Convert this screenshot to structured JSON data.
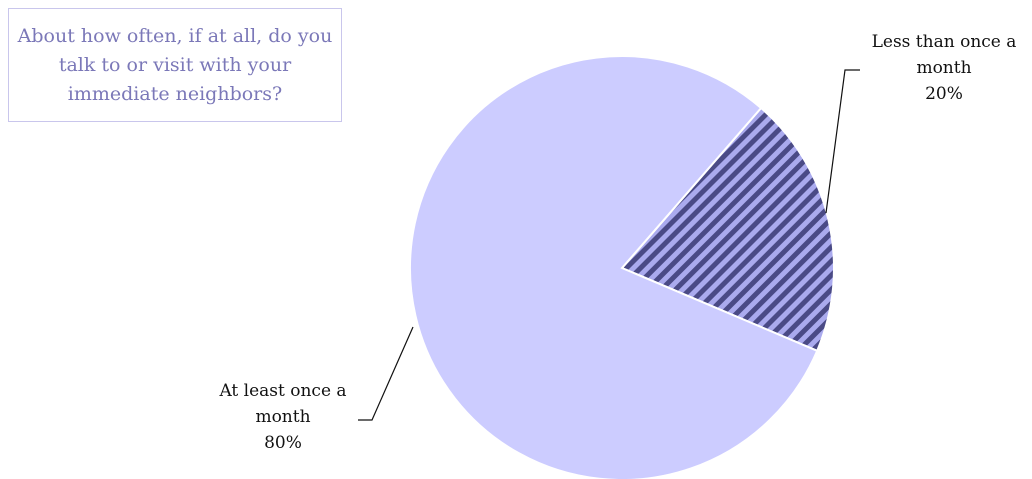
{
  "title": "About how often, if at all, do you talk to or visit with your immediate neighbors?",
  "chart_data": {
    "type": "pie",
    "categories": [
      "Less than once a month",
      "At least once a month"
    ],
    "values": [
      20,
      80
    ],
    "value_labels": [
      "20%",
      "80%"
    ],
    "label_lines": [
      [
        "Less than once a",
        "month",
        "20%"
      ],
      [
        "At least once a",
        "month",
        "80%"
      ]
    ],
    "colors": {
      "at_least": "#ccccff",
      "less_than_fill": "#aaaaee",
      "less_than_hatch": "#4a4a86",
      "slice_border": "#ffffff"
    },
    "patterns": [
      "diagonal-hatch",
      "solid"
    ],
    "legend": "none"
  }
}
